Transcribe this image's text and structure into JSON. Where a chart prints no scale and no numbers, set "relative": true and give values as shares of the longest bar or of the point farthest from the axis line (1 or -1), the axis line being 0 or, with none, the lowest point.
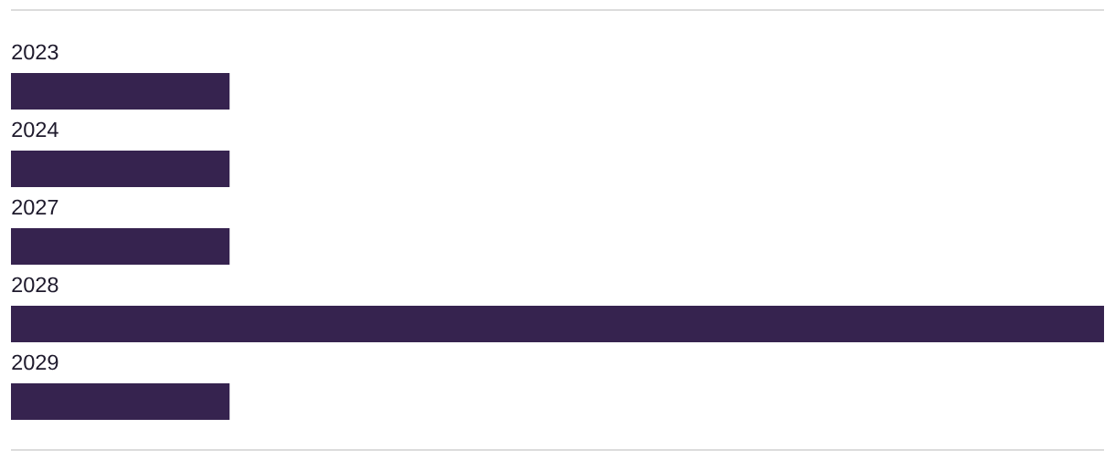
{
  "chart_data": {
    "type": "bar",
    "orientation": "horizontal",
    "relative": true,
    "categories": [
      "2023",
      "2024",
      "2027",
      "2028",
      "2029"
    ],
    "values": [
      0.2,
      0.2,
      0.2,
      1,
      0.2
    ],
    "color": "#36234f"
  }
}
